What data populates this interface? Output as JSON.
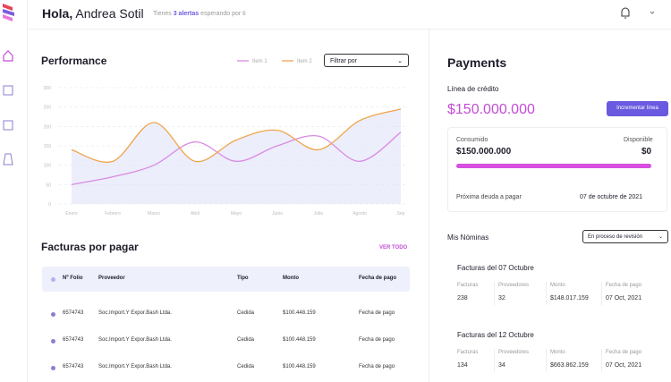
{
  "header": {
    "greeting": "Hola,",
    "name": "Andrea Sotil",
    "alert_prefix": "Tienes",
    "alert_link": "3 alertas",
    "alert_suffix": "esperando por ti"
  },
  "chart_data": {
    "type": "line",
    "title": "Performance",
    "filter": "Filtrar por",
    "categories": [
      "Enero",
      "Febrero",
      "Marzo",
      "Abril",
      "Mayo",
      "Junio",
      "Julio",
      "Agosto",
      "Sep"
    ],
    "series": [
      {
        "name": "Item 1",
        "color": "#d98ae0",
        "values": [
          50,
          70,
          100,
          160,
          110,
          150,
          175,
          110,
          185
        ]
      },
      {
        "name": "Item 2",
        "color": "#f0a54a",
        "fill": "#eceefc",
        "values": [
          140,
          110,
          210,
          110,
          165,
          190,
          140,
          215,
          245
        ]
      }
    ],
    "ylim": [
      0,
      300
    ],
    "yticks": [
      0,
      50,
      100,
      150,
      200,
      250,
      300
    ],
    "grid": true
  },
  "invoices": {
    "title": "Facturas por pagar",
    "link": "VER TODO",
    "columns": [
      "Nº Folio",
      "Proveedor",
      "Tipo",
      "Monto",
      "Fecha de pago"
    ],
    "rows": [
      [
        "6574743",
        "Soc.Import.Y Expor.Bash Ltda.",
        "Cedida",
        "$100.448.159",
        "Fecha de pago"
      ],
      [
        "6574743",
        "Soc.Import.Y Expor.Bash Ltda.",
        "Cedida",
        "$100.448.159",
        "Fecha de pago"
      ],
      [
        "6574743",
        "Soc.Import.Y Expor.Bash Ltda.",
        "Cedida",
        "$100.448.159",
        "Fecha de pago"
      ]
    ]
  },
  "payments": {
    "title": "Payments",
    "credit_label": "Línea de crédito",
    "credit_amount": "$150.000.000",
    "button": "Incrementar línea",
    "used_label": "Consumido",
    "available_label": "Disponible",
    "used_amount": "$150.000.000",
    "available_amount": "$0",
    "next_label": "Próxima deuda a pagar",
    "next_date": "07 de octubre de 2021"
  },
  "payrolls": {
    "title": "Mis Nóminas",
    "filter": "En proceso de revisión",
    "columns": [
      "Facturas",
      "Proveedores",
      "Monto",
      "Fecha de pago"
    ],
    "groups": [
      {
        "title": "Facturas del 07 Octubre",
        "values": [
          "238",
          "32",
          "$148.017.159",
          "07 Oct, 2021"
        ]
      },
      {
        "title": "Facturas del 12 Octubre",
        "values": [
          "134",
          "34",
          "$663.862.159",
          "07 Oct, 2021"
        ]
      }
    ]
  }
}
